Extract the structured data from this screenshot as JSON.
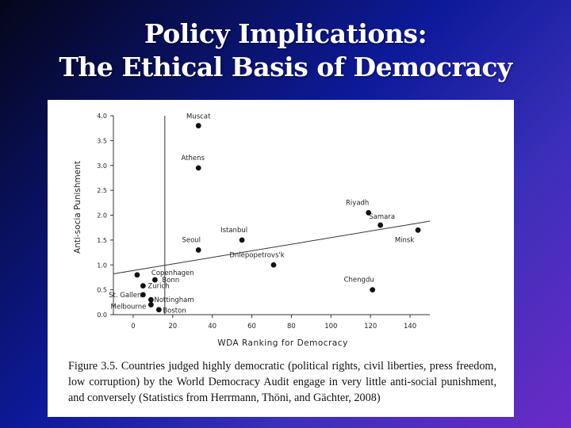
{
  "slide": {
    "title_line1": "Policy Implications:",
    "title_line2": "The Ethical Basis of Democracy"
  },
  "chart_data": {
    "type": "scatter",
    "xlabel": "WDA Ranking for Democracy",
    "ylabel": "Anti-socia Punishment",
    "xlim": [
      -10,
      150
    ],
    "ylim": [
      0,
      4
    ],
    "xticks": [
      0,
      20,
      40,
      60,
      80,
      100,
      120,
      140
    ],
    "yticks": [
      0.0,
      0.5,
      1.0,
      1.5,
      2.0,
      2.5,
      3.0,
      3.5,
      4.0
    ],
    "grid": false,
    "vertical_reference_x": 16,
    "trendline": {
      "from": [
        -10,
        0.82
      ],
      "to": [
        150,
        1.88
      ]
    },
    "points": [
      {
        "label": "Muscat",
        "x": 33,
        "y": 3.8
      },
      {
        "label": "Athens",
        "x": 33,
        "y": 2.95
      },
      {
        "label": "Riyadh",
        "x": 119,
        "y": 2.05
      },
      {
        "label": "Samara",
        "x": 125,
        "y": 1.8
      },
      {
        "label": "Minsk",
        "x": 144,
        "y": 1.7
      },
      {
        "label": "Istanbul",
        "x": 55,
        "y": 1.5
      },
      {
        "label": "Seoul",
        "x": 33,
        "y": 1.3
      },
      {
        "label": "Dniepopetrovs'k",
        "x": 71,
        "y": 1.0
      },
      {
        "label": "Chengdu",
        "x": 121,
        "y": 0.5
      },
      {
        "label": "Copenhagen",
        "x": 2,
        "y": 0.8
      },
      {
        "label": "Bonn",
        "x": 11,
        "y": 0.7
      },
      {
        "label": "Zurich",
        "x": 5,
        "y": 0.58
      },
      {
        "label": "St. Gallen",
        "x": 5,
        "y": 0.4
      },
      {
        "label": "Nottingham",
        "x": 9,
        "y": 0.3
      },
      {
        "label": "Melbourne",
        "x": 9,
        "y": 0.2
      },
      {
        "label": "Boston",
        "x": 13,
        "y": 0.1
      }
    ]
  },
  "figure": {
    "caption": "Figure 3.5.  Countries judged highly democratic (political rights, civil liberties, press freedom, low corruption) by the World Democracy Audit engage in very little anti-social punishment, and conversely (Statistics from Herrmann, Thöni, and Gächter, 2008)"
  }
}
